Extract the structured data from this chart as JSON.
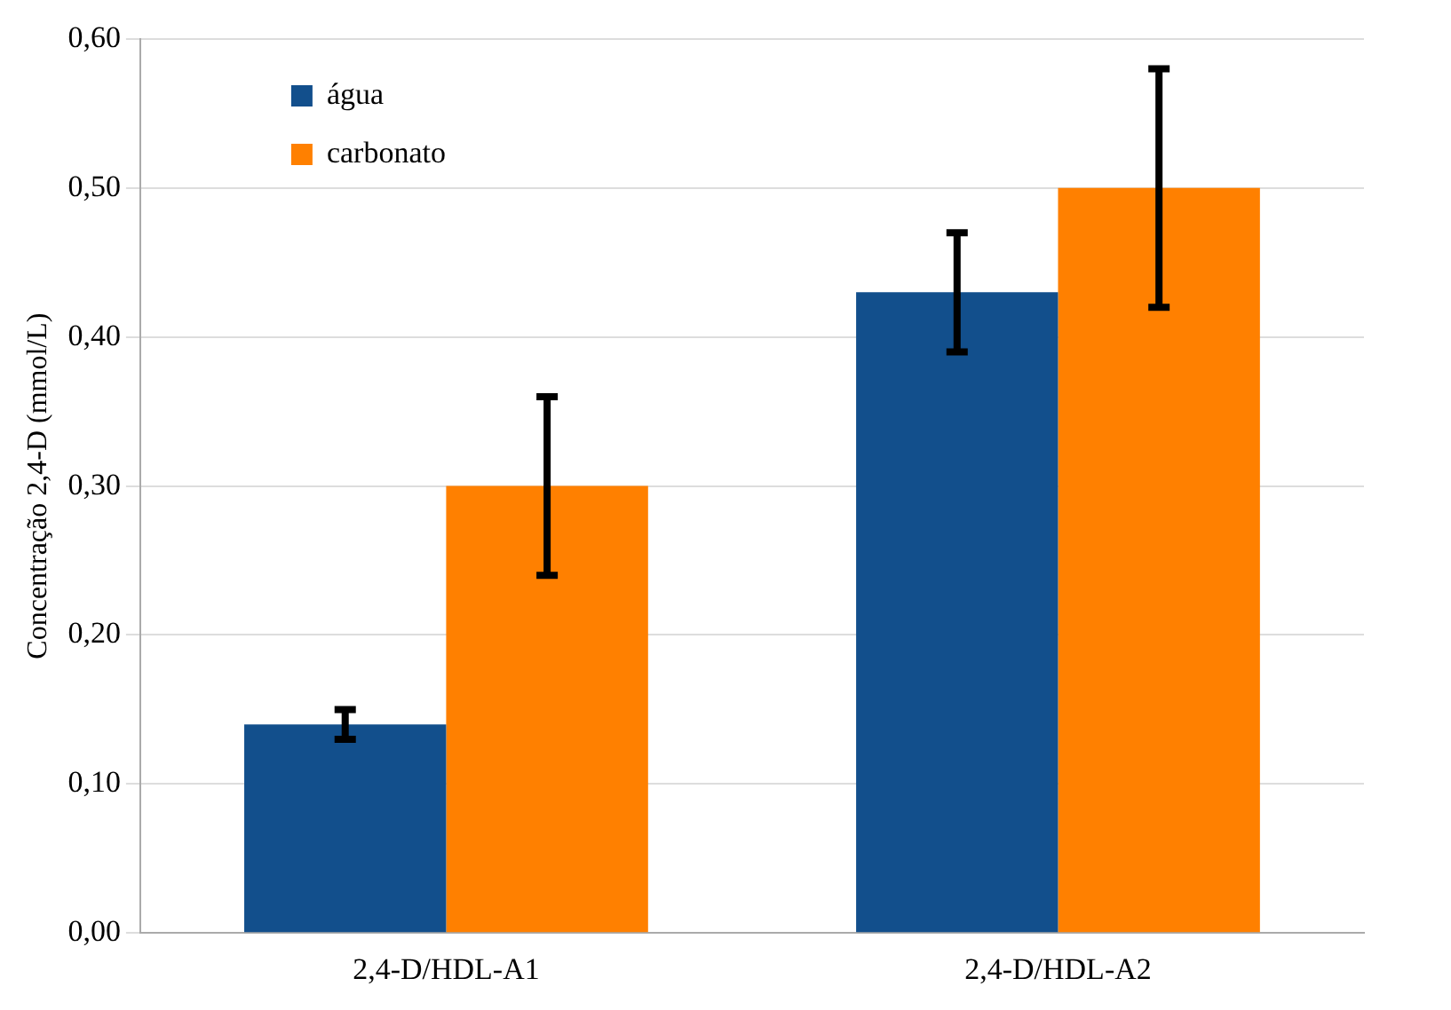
{
  "chart_data": {
    "type": "bar",
    "ylabel": "Concentração 2,4-D (mmol/L)",
    "categories": [
      "2,4-D/HDL-A1",
      "2,4-D/HDL-A2"
    ],
    "series": [
      {
        "name": "água",
        "color": "#124f8c",
        "values": [
          0.14,
          0.43
        ],
        "errors": [
          0.01,
          0.04
        ]
      },
      {
        "name": "carbonato",
        "color": "#ff8000",
        "values": [
          0.3,
          0.5
        ],
        "errors": [
          0.06,
          0.08
        ]
      }
    ],
    "ylim": [
      0,
      0.6
    ],
    "yticks": [
      {
        "value": 0,
        "label": "0,00"
      },
      {
        "value": 0.1,
        "label": "0,10"
      },
      {
        "value": 0.2,
        "label": "0,20"
      },
      {
        "value": 0.3,
        "label": "0,30"
      },
      {
        "value": 0.4,
        "label": "0,40"
      },
      {
        "value": 0.5,
        "label": "0,50"
      },
      {
        "value": 0.6,
        "label": "0,60"
      }
    ],
    "grid": "y",
    "legend": "top left"
  }
}
